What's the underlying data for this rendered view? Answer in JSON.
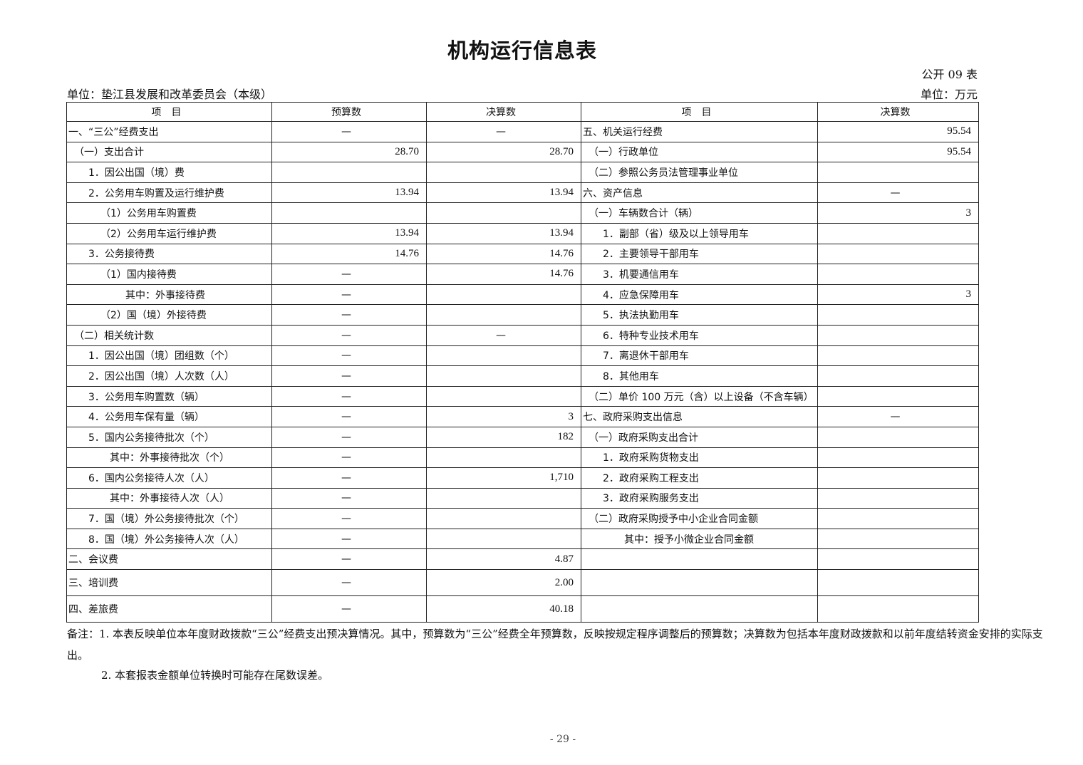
{
  "title": "机构运行信息表",
  "form_no": "公开 09 表",
  "unit_left": "单位：垫江县发展和改革委员会（本级）",
  "unit_right": "单位：万元",
  "headers": [
    "项　目",
    "预算数",
    "决算数",
    "项　目",
    "决算数"
  ],
  "rows": [
    {
      "l": "一、“三公”经费支出",
      "li": 0,
      "b": "—",
      "f": "—",
      "rl": "五、机关运行经费",
      "ri": 0,
      "rv": "95.54"
    },
    {
      "l": "（一）支出合计",
      "li": 1,
      "b": "28.70",
      "f": "28.70",
      "rl": "（一）行政单位",
      "ri": 1,
      "rv": "95.54"
    },
    {
      "l": "1．因公出国（境）费",
      "li": 2,
      "b": "",
      "f": "",
      "rl": "（二）参照公务员法管理事业单位",
      "ri": 1,
      "rv": ""
    },
    {
      "l": "2．公务用车购置及运行维护费",
      "li": 2,
      "b": "13.94",
      "f": "13.94",
      "rl": "六、资产信息",
      "ri": 0,
      "rv": "—"
    },
    {
      "l": "（1）公务用车购置费",
      "li": 3,
      "b": "",
      "f": "",
      "rl": "（一）车辆数合计（辆）",
      "ri": 1,
      "rv": "3"
    },
    {
      "l": "（2）公务用车运行维护费",
      "li": 3,
      "b": "13.94",
      "f": "13.94",
      "rl": "1．副部（省）级及以上领导用车",
      "ri": 2,
      "rv": ""
    },
    {
      "l": "3．公务接待费",
      "li": 2,
      "b": "14.76",
      "f": "14.76",
      "rl": "2．主要领导干部用车",
      "ri": 2,
      "rv": ""
    },
    {
      "l": "（1）国内接待费",
      "li": 3,
      "b": "—",
      "f": "14.76",
      "rl": "3．机要通信用车",
      "ri": 2,
      "rv": ""
    },
    {
      "l": "其中：外事接待费",
      "li": 4,
      "b": "—",
      "f": "",
      "rl": "4．应急保障用车",
      "ri": 2,
      "rv": "3"
    },
    {
      "l": "（2）国（境）外接待费",
      "li": 3,
      "b": "—",
      "f": "",
      "rl": "5．执法执勤用车",
      "ri": 2,
      "rv": ""
    },
    {
      "l": "（二）相关统计数",
      "li": 1,
      "b": "—",
      "f": "—",
      "rl": "6．特种专业技术用车",
      "ri": 2,
      "rv": ""
    },
    {
      "l": "1．因公出国（境）团组数（个）",
      "li": 2,
      "b": "—",
      "f": "",
      "rl": "7．离退休干部用车",
      "ri": 2,
      "rv": ""
    },
    {
      "l": "2．因公出国（境）人次数（人）",
      "li": 2,
      "b": "—",
      "f": "",
      "rl": "8．其他用车",
      "ri": 2,
      "rv": ""
    },
    {
      "l": "3．公务用车购置数（辆）",
      "li": 2,
      "b": "—",
      "f": "",
      "rl": "（二）单价 100 万元（含）以上设备（不含车辆）",
      "ri": 1,
      "rv": ""
    },
    {
      "l": "4．公务用车保有量（辆）",
      "li": 2,
      "b": "—",
      "f": "3",
      "rl": "七、政府采购支出信息",
      "ri": 0,
      "rv": "—"
    },
    {
      "l": "5．国内公务接待批次（个）",
      "li": 2,
      "b": "—",
      "f": "182",
      "rl": "（一）政府采购支出合计",
      "ri": 1,
      "rv": ""
    },
    {
      "l": "其中：外事接待批次（个）",
      "li": 5,
      "b": "—",
      "f": "",
      "rl": "1．政府采购货物支出",
      "ri": 2,
      "rv": ""
    },
    {
      "l": "6．国内公务接待人次（人）",
      "li": 2,
      "b": "—",
      "f": "1,710",
      "rl": "2．政府采购工程支出",
      "ri": 2,
      "rv": ""
    },
    {
      "l": "其中：外事接待人次（人）",
      "li": 5,
      "b": "—",
      "f": "",
      "rl": "3．政府采购服务支出",
      "ri": 2,
      "rv": ""
    },
    {
      "l": "7．国（境）外公务接待批次（个）",
      "li": 2,
      "b": "—",
      "f": "",
      "rl": "（二）政府采购授予中小企业合同金额",
      "ri": 1,
      "rv": ""
    },
    {
      "l": "8．国（境）外公务接待人次（人）",
      "li": 2,
      "b": "—",
      "f": "",
      "rl": "其中：授予小微企业合同金额",
      "ri": 6,
      "rv": ""
    },
    {
      "l": "二、会议费",
      "li": 0,
      "b": "—",
      "f": "4.87",
      "rl": "",
      "ri": 0,
      "rv": ""
    },
    {
      "l": "三、培训费",
      "li": 0,
      "b": "—",
      "f": "2.00",
      "rl": "",
      "ri": 0,
      "rv": ""
    },
    {
      "l": "四、差旅费",
      "li": 0,
      "b": "—",
      "f": "40.18",
      "rl": "",
      "ri": 0,
      "rv": ""
    }
  ],
  "notes": [
    "备注：1. 本表反映单位本年度财政拨款“三公”经费支出预决算情况。其中，预算数为“三公”经费全年预算数，反映按规定程序调整后的预算数；决算数为包括本年度财政拨款和以前年度结转资金安排的实际支出。",
    "2. 本套报表金额单位转换时可能存在尾数误差。"
  ],
  "page_number": "- 29 -"
}
